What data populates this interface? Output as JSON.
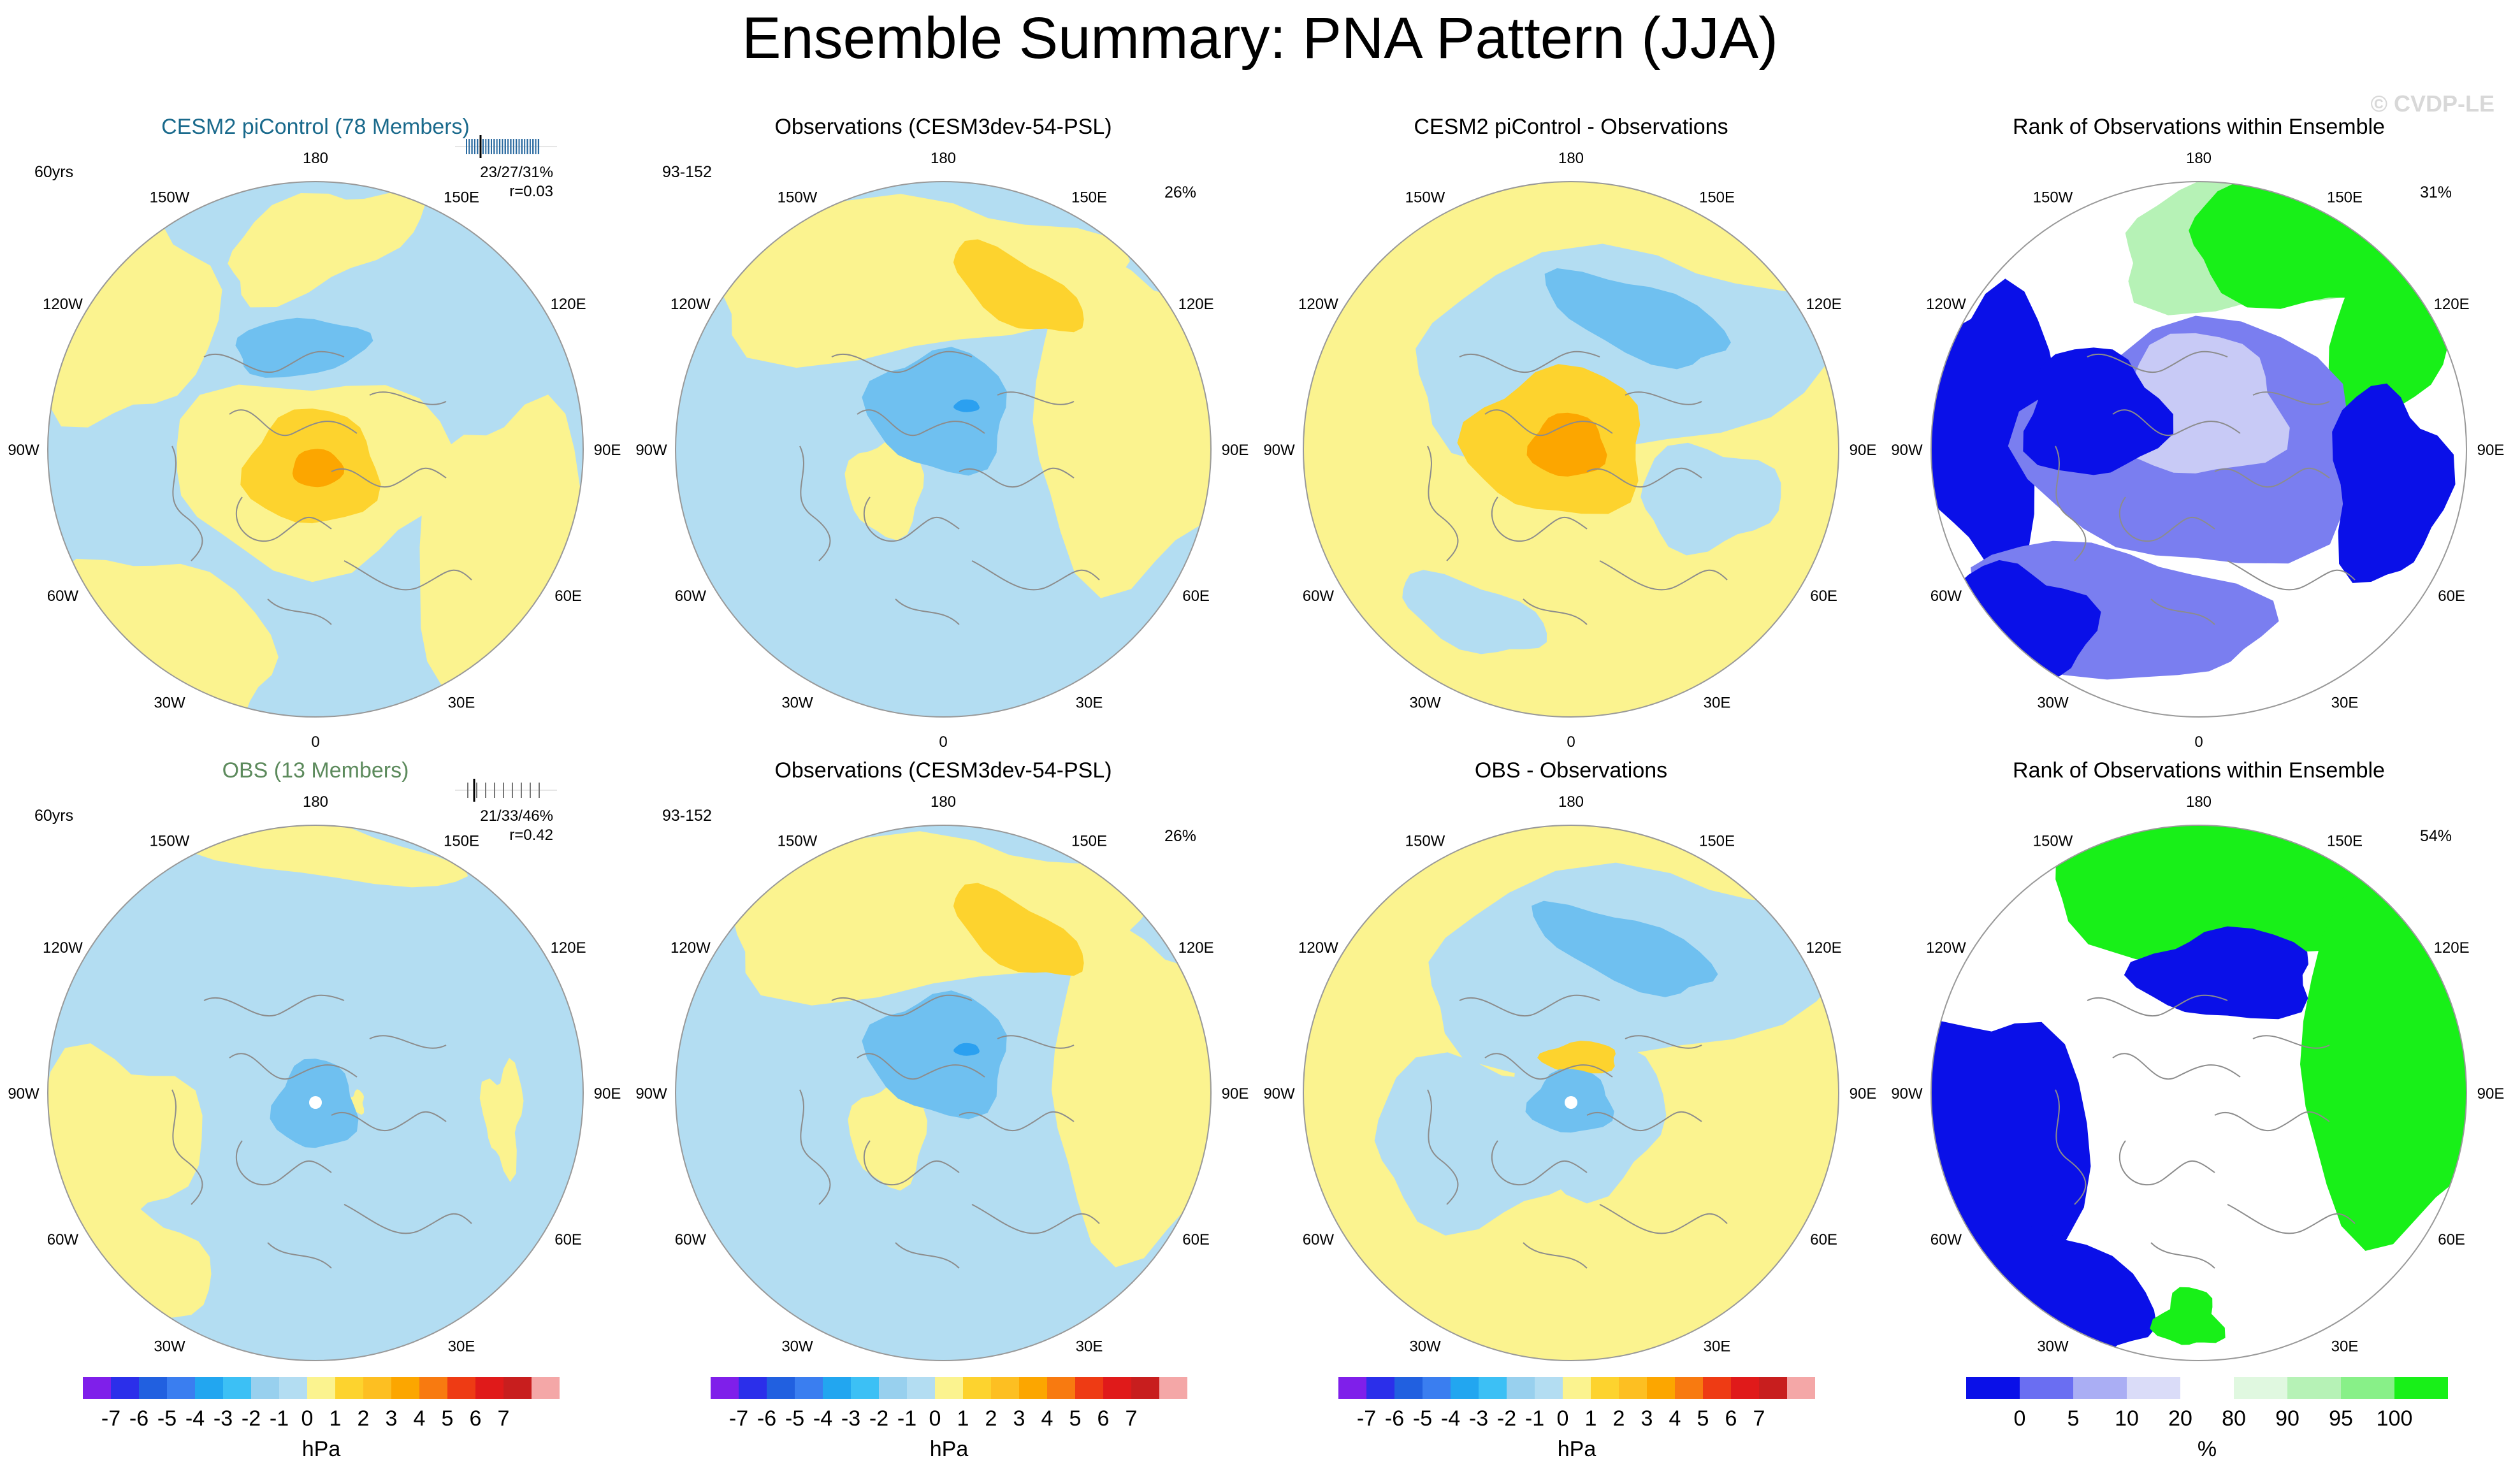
{
  "title": "Ensemble Summary: PNA Pattern (JJA)",
  "watermark": "© CVDP-LE",
  "colors": {
    "blue1": "#b3ddf2",
    "blue2": "#6fc0f0",
    "blue3": "#2ba0f0",
    "yellow1": "#fbf38f",
    "yellow2": "#fdd32e",
    "yellow3": "#fca600",
    "rank_dark_blue": "#0a10e8",
    "rank_mid_blue": "#7a7ef0",
    "rank_light_blue": "#c8caf6",
    "rank_green": "#18f018",
    "rank_light_green": "#b6f2b6",
    "coast": "#8c8c8c"
  },
  "lon_labels": [
    "180",
    "150E",
    "120E",
    "90E",
    "60E",
    "30E",
    "0",
    "30W",
    "60W",
    "90W",
    "120W",
    "150W"
  ],
  "panels": [
    {
      "id": "p1",
      "title": "CESM2 piControl (78 Members)",
      "title_color": "#1a6a8c",
      "left_text": "60yrs",
      "stats": [
        "23/27/31%",
        "r=0.03"
      ],
      "ticks_style": "dense"
    },
    {
      "id": "p2",
      "title": "Observations (CESM3dev-54-PSL)",
      "title_color": "#000000",
      "left_text": "93-152",
      "pct": "26%"
    },
    {
      "id": "p3",
      "title": "CESM2 piControl - Observations",
      "title_color": "#000000"
    },
    {
      "id": "p4",
      "title": "Rank of Observations within Ensemble",
      "title_color": "#000000",
      "pct": "31%"
    },
    {
      "id": "p5",
      "title": "OBS (13 Members)",
      "title_color": "#5c8a5c",
      "left_text": "60yrs",
      "stats": [
        "21/33/46%",
        "r=0.42"
      ],
      "ticks_style": "sparse"
    },
    {
      "id": "p6",
      "title": "Observations (CESM3dev-54-PSL)",
      "title_color": "#000000",
      "left_text": "93-152",
      "pct": "26%"
    },
    {
      "id": "p7",
      "title": "OBS - Observations",
      "title_color": "#000000"
    },
    {
      "id": "p8",
      "title": "Rank of Observations within Ensemble",
      "title_color": "#000000",
      "pct": "54%"
    }
  ],
  "chart_data": [
    {
      "type": "contour-map",
      "projection": "north-polar-stereographic",
      "title": "CESM2 piControl (78 Members)",
      "units": "hPa",
      "features": [
        {
          "sign": "+",
          "center": "Arctic",
          "max": 3
        },
        {
          "sign": "-",
          "center": "North Pacific",
          "min": -2
        }
      ]
    },
    {
      "type": "contour-map",
      "projection": "north-polar-stereographic",
      "title": "Observations (CESM3dev-54-PSL)",
      "units": "hPa",
      "features": [
        {
          "sign": "+",
          "center": "Bering Sea",
          "max": 2
        },
        {
          "sign": "-",
          "center": "Alaska",
          "min": -3
        }
      ]
    },
    {
      "type": "contour-map",
      "projection": "north-polar-stereographic",
      "title": "CESM2 piControl - Observations",
      "units": "hPa",
      "features": [
        {
          "sign": "+",
          "center": "Canadian Arctic",
          "max": 3
        },
        {
          "sign": "-",
          "center": "North Pacific",
          "min": -2
        }
      ]
    },
    {
      "type": "rank-map",
      "projection": "north-polar-stereographic",
      "title": "Rank of Observations within Ensemble",
      "units": "%"
    },
    {
      "type": "contour-map",
      "projection": "north-polar-stereographic",
      "title": "OBS (13 Members)",
      "units": "hPa",
      "features": [
        {
          "sign": "-",
          "center": "Arctic",
          "min": -2
        }
      ]
    },
    {
      "type": "contour-map",
      "projection": "north-polar-stereographic",
      "title": "Observations (CESM3dev-54-PSL)",
      "units": "hPa",
      "features": [
        {
          "sign": "+",
          "center": "Bering Sea",
          "max": 2
        },
        {
          "sign": "-",
          "center": "Alaska",
          "min": -3
        }
      ]
    },
    {
      "type": "contour-map",
      "projection": "north-polar-stereographic",
      "title": "OBS - Observations",
      "units": "hPa",
      "features": [
        {
          "sign": "+",
          "center": "Bering Sea",
          "max": 2
        },
        {
          "sign": "-",
          "center": "North Pacific",
          "min": -2
        }
      ]
    },
    {
      "type": "rank-map",
      "projection": "north-polar-stereographic",
      "title": "Rank of Observations within Ensemble",
      "units": "%"
    }
  ],
  "colorbar_hpa": {
    "labels": [
      "-7",
      "-6",
      "-5",
      "-4",
      "-3",
      "-2",
      "-1",
      "0",
      "1",
      "2",
      "3",
      "4",
      "5",
      "6",
      "7"
    ],
    "colors": [
      "#7f1fea",
      "#2b2fea",
      "#2160e0",
      "#3a7ef0",
      "#22a6f0",
      "#3cc0f5",
      "#98d0ee",
      "#b3ddf2",
      "#fbf38f",
      "#fdd32e",
      "#fdbf22",
      "#fca600",
      "#f87a10",
      "#ee3b14",
      "#e01a1a",
      "#c81e1e",
      "#f4a7a7"
    ],
    "unit": "hPa"
  },
  "colorbar_rank": {
    "labels": [
      "0",
      "5",
      "10",
      "20",
      "80",
      "90",
      "95",
      "100"
    ],
    "colors": [
      "#0a10e8",
      "#6a6ef2",
      "#aaaef4",
      "#dadcf8",
      "#ffffff",
      "#e0f8e0",
      "#b6f2b6",
      "#88f088",
      "#18f018"
    ],
    "unit": "%"
  }
}
